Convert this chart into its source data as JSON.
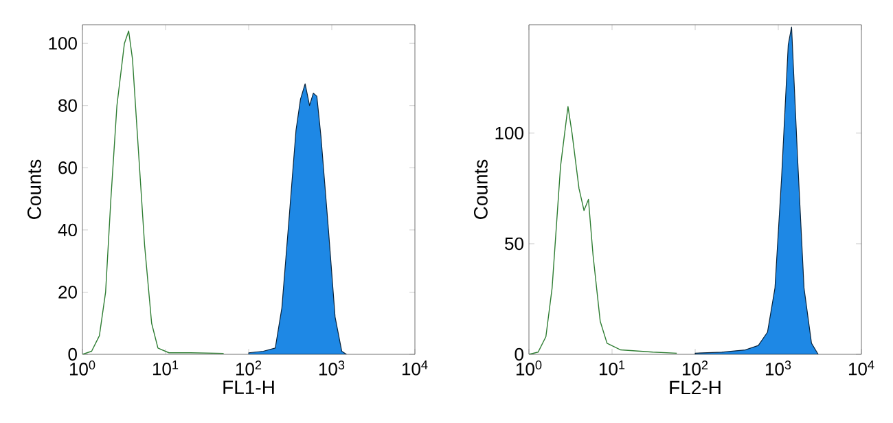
{
  "chart_data": [
    {
      "type": "area",
      "xlabel": "FL1-H",
      "ylabel": "Counts",
      "log": "x",
      "xlim": [
        1,
        10000
      ],
      "ylim": [
        0,
        106
      ],
      "xticks": [
        {
          "value": 1,
          "label": "10$^{0}$"
        },
        {
          "value": 10,
          "label": "10$^{1}$"
        },
        {
          "value": 100,
          "label": "10$^{2}$"
        },
        {
          "value": 1000,
          "label": "10$^{3}$"
        },
        {
          "value": 10000,
          "label": "10$^{4}$"
        }
      ],
      "yticks": [
        0,
        20,
        40,
        60,
        80,
        100
      ],
      "series": [
        {
          "type": "line",
          "color": "#2e7d32",
          "x": [
            1,
            1.29,
            1.6,
            1.9,
            2.2,
            2.6,
            3.2,
            3.6,
            4.0,
            4.6,
            5.6,
            6.8,
            8.1,
            11,
            20,
            50
          ],
          "values": [
            0,
            1,
            6,
            20,
            50,
            80,
            100,
            104,
            95,
            70,
            35,
            10,
            2,
            0.5,
            0.5,
            0.3
          ]
        },
        {
          "color": "#1e88e5",
          "x": [
            100,
            150,
            209,
            251,
            309,
            371,
            420,
            478,
            540,
            600,
            661,
            741,
            912,
            1096,
            1318,
            1500
          ],
          "values": [
            0.5,
            1,
            2,
            15,
            45,
            72,
            82,
            87,
            80,
            84,
            83,
            70,
            40,
            12,
            1,
            0
          ]
        }
      ]
    },
    {
      "type": "area",
      "xlabel": "FL2-H",
      "ylabel": "Counts",
      "log": "x",
      "xlim": [
        1,
        10000
      ],
      "ylim": [
        0,
        149
      ],
      "xticks": [
        {
          "value": 1,
          "label": "10$^{0}$"
        },
        {
          "value": 10,
          "label": "10$^{1}$"
        },
        {
          "value": 100,
          "label": "10$^{2}$"
        },
        {
          "value": 1000,
          "label": "10$^{3}$"
        },
        {
          "value": 10000,
          "label": "10$^{4}$"
        }
      ],
      "yticks": [
        0,
        50,
        100
      ],
      "series": [
        {
          "type": "line",
          "color": "#2e7d32",
          "x": [
            1,
            1.29,
            1.6,
            1.9,
            2.4,
            2.95,
            3.3,
            4.0,
            4.6,
            5.2,
            5.9,
            7.2,
            8.7,
            12.7,
            31,
            60
          ],
          "values": [
            0,
            1,
            8,
            30,
            85,
            112,
            100,
            75,
            65,
            70,
            45,
            15,
            5,
            2,
            1,
            0.5
          ]
        },
        {
          "color": "#1e88e5",
          "x": [
            100,
            209,
            400,
            575,
            741,
            912,
            1096,
            1318,
            1445,
            1700,
            2040,
            2510,
            3020
          ],
          "values": [
            0.5,
            1,
            2,
            4,
            10,
            30,
            80,
            140,
            148,
            90,
            30,
            5,
            0
          ]
        }
      ]
    }
  ]
}
